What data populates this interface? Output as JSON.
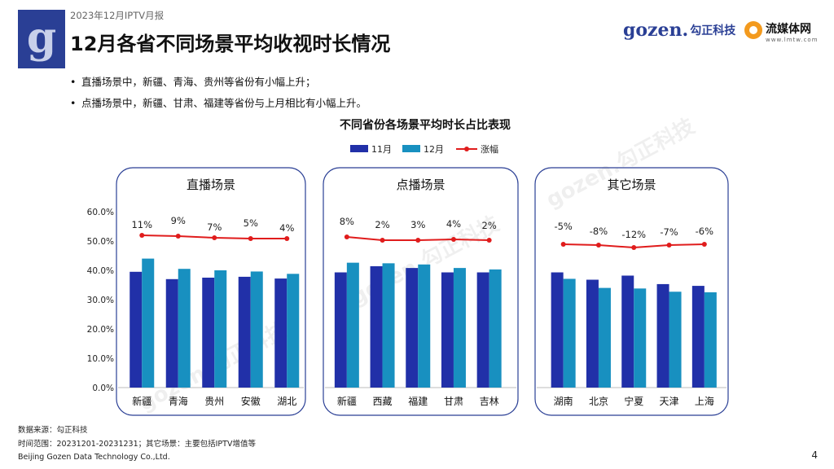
{
  "header": {
    "report_tag": "2023年12月IPTV月报",
    "title": "12月各省不同场景平均收视时长情况",
    "brand_gozen_latin": "gozen.",
    "brand_gozen_cn": "勾正科技",
    "brand_lmt": "流媒体网",
    "brand_lmt_url": "www.lmtw.com"
  },
  "bullets": [
    "直播场景中，新疆、青海、贵州等省份有小幅上升；",
    "点播场景中，新疆、甘肃、福建等省份与上月相比有小幅上升。"
  ],
  "watermark_text": "gozen.勾正科技",
  "footer": {
    "source": "数据来源：勾正科技",
    "range": "时间范围：20231201-20231231；其它场景：主要包括IPTV增值等",
    "company": "Beijing Gozen Data Technology Co.,Ltd.",
    "page": "4"
  },
  "colors": {
    "nov": "#2130a8",
    "dec": "#1890c0",
    "change": "#e01c1c",
    "panel_border": "#2a3f95",
    "brand": "#2a3f95"
  },
  "chart_data": {
    "type": "bar",
    "title": "不同省份各场景平均时长占比表现",
    "legend": [
      "11月",
      "12月",
      "涨幅"
    ],
    "legend_position": "top-center",
    "y_ticks": [
      "60.0%",
      "50.0%",
      "40.0%",
      "30.0%",
      "20.0%",
      "10.0%",
      "0.0%"
    ],
    "ylim": [
      0,
      60
    ],
    "grid": false,
    "panels": [
      {
        "title": "直播场景",
        "categories": [
          "新疆",
          "青海",
          "贵州",
          "安徽",
          "湖北"
        ],
        "series": [
          {
            "name": "11月",
            "values": [
              39.5,
              37.0,
              37.5,
              37.8,
              37.2
            ]
          },
          {
            "name": "12月",
            "values": [
              44.0,
              40.5,
              40.0,
              39.6,
              38.8
            ]
          }
        ],
        "change_labels": [
          "11%",
          "9%",
          "7%",
          "5%",
          "4%"
        ],
        "change_values": [
          11,
          9,
          7,
          5,
          4
        ]
      },
      {
        "title": "点播场景",
        "categories": [
          "新疆",
          "西藏",
          "福建",
          "甘肃",
          "吉林"
        ],
        "series": [
          {
            "name": "11月",
            "values": [
              39.3,
              41.4,
              40.8,
              39.3,
              39.3
            ]
          },
          {
            "name": "12月",
            "values": [
              42.6,
              42.4,
              42.0,
              40.8,
              40.3
            ]
          }
        ],
        "change_labels": [
          "8%",
          "2%",
          "3%",
          "4%",
          "2%"
        ],
        "change_values": [
          8,
          2,
          3,
          4,
          2
        ]
      },
      {
        "title": "其它场景",
        "categories": [
          "湖南",
          "北京",
          "宁夏",
          "天津",
          "上海"
        ],
        "series": [
          {
            "name": "11月",
            "values": [
              39.3,
              36.8,
              38.2,
              35.3,
              34.7
            ]
          },
          {
            "name": "12月",
            "values": [
              37.1,
              34.0,
              33.8,
              32.7,
              32.5
            ]
          }
        ],
        "change_labels": [
          "-5%",
          "-8%",
          "-12%",
          "-7%",
          "-6%"
        ],
        "change_values": [
          -5,
          -8,
          -12,
          -7,
          -6
        ]
      }
    ]
  }
}
